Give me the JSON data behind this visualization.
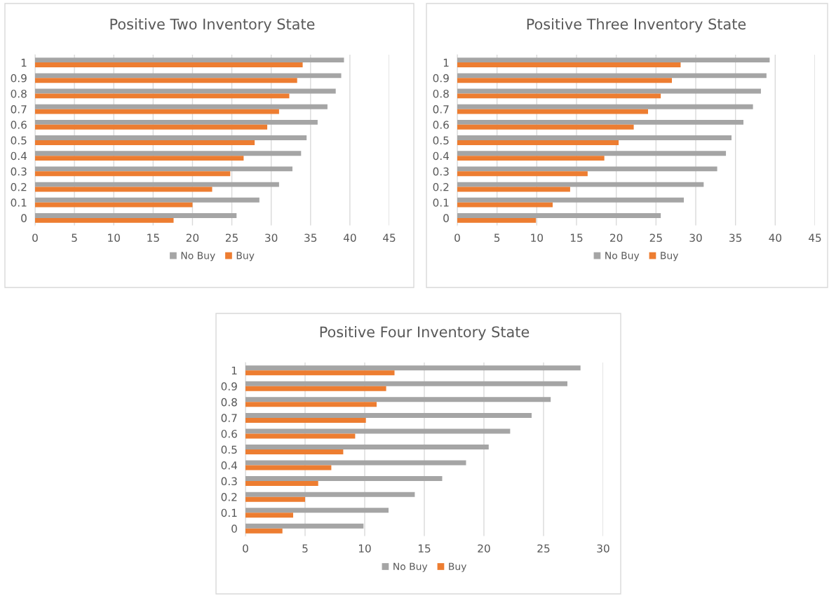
{
  "chart_data": [
    {
      "type": "bar",
      "orientation": "horizontal",
      "title": "Positive Two Inventory State",
      "categories": [
        "1",
        "0.9",
        "0.8",
        "0.7",
        "0.6",
        "0.5",
        "0.4",
        "0.3",
        "0.2",
        "0.1",
        "0"
      ],
      "series": [
        {
          "name": "No Buy",
          "color": "#a5a5a5",
          "values": [
            39.25,
            38.9,
            38.2,
            37.15,
            35.9,
            34.5,
            33.8,
            32.7,
            31.0,
            28.5,
            25.6
          ]
        },
        {
          "name": "Buy",
          "color": "#ed7d31",
          "values": [
            34.0,
            33.3,
            32.3,
            31.0,
            29.5,
            27.9,
            26.5,
            24.8,
            22.5,
            20.0,
            17.6
          ]
        }
      ],
      "xlim": [
        0,
        45
      ],
      "xticks": [
        0,
        5,
        10,
        15,
        20,
        25,
        30,
        35,
        40,
        45
      ],
      "grid": "x",
      "legend": "bottom"
    },
    {
      "type": "bar",
      "orientation": "horizontal",
      "title": "Positive Three Inventory State",
      "categories": [
        "1",
        "0.9",
        "0.8",
        "0.7",
        "0.6",
        "0.5",
        "0.4",
        "0.3",
        "0.2",
        "0.1",
        "0"
      ],
      "series": [
        {
          "name": "No Buy",
          "color": "#a5a5a5",
          "values": [
            39.3,
            38.9,
            38.2,
            37.2,
            36.0,
            34.5,
            33.8,
            32.7,
            31.0,
            28.5,
            25.6
          ]
        },
        {
          "name": "Buy",
          "color": "#ed7d31",
          "values": [
            28.1,
            27.0,
            25.6,
            24.0,
            22.2,
            20.3,
            18.5,
            16.4,
            14.2,
            12.0,
            9.9
          ]
        }
      ],
      "xlim": [
        0,
        45
      ],
      "xticks": [
        0,
        5,
        10,
        15,
        20,
        25,
        30,
        35,
        40,
        45
      ],
      "grid": "x",
      "legend": "bottom"
    },
    {
      "type": "bar",
      "orientation": "horizontal",
      "title": "Positive Four Inventory State",
      "categories": [
        "1",
        "0.9",
        "0.8",
        "0.7",
        "0.6",
        "0.5",
        "0.4",
        "0.3",
        "0.2",
        "0.1",
        "0"
      ],
      "series": [
        {
          "name": "No Buy",
          "color": "#a5a5a5",
          "values": [
            28.1,
            27.0,
            25.6,
            24.0,
            22.2,
            20.4,
            18.5,
            16.5,
            14.2,
            12.0,
            9.9
          ]
        },
        {
          "name": "Buy",
          "color": "#ed7d31",
          "values": [
            12.5,
            11.8,
            11.0,
            10.1,
            9.2,
            8.2,
            7.2,
            6.1,
            5.0,
            4.0,
            3.1
          ]
        }
      ],
      "xlim": [
        0,
        30
      ],
      "xticks": [
        0,
        5,
        10,
        15,
        20,
        25,
        30
      ],
      "grid": "x",
      "legend": "bottom"
    }
  ]
}
